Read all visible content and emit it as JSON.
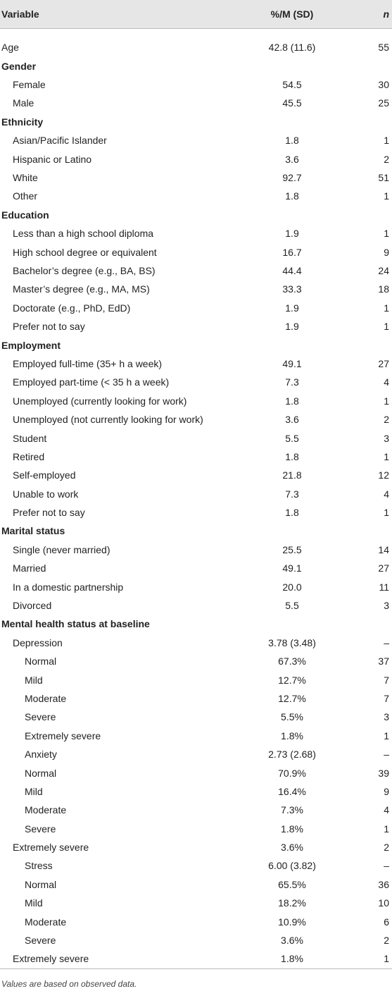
{
  "table": {
    "header": [
      "Variable",
      "%/M (SD)",
      "n"
    ],
    "rows": [
      [
        "Age",
        "42.8 (11.6)",
        "55"
      ],
      [
        "Gender"
      ],
      [
        "Female",
        "54.5",
        "30"
      ],
      [
        "Male",
        "45.5",
        "25"
      ],
      [
        "Ethnicity"
      ],
      [
        "Asian/Pacific Islander",
        "1.8",
        "1"
      ],
      [
        "Hispanic or Latino",
        "3.6",
        "2"
      ],
      [
        "White",
        "92.7",
        "51"
      ],
      [
        "Other",
        "1.8",
        "1"
      ],
      [
        "Education"
      ],
      [
        "Less than a high school diploma",
        "1.9",
        "1"
      ],
      [
        "High school degree or equivalent",
        "16.7",
        "9"
      ],
      [
        "Bachelor’s degree (e.g., BA, BS)",
        "44.4",
        "24"
      ],
      [
        "Master’s degree (e.g., MA, MS)",
        "33.3",
        "18"
      ],
      [
        "Doctorate (e.g., PhD, EdD)",
        "1.9",
        "1"
      ],
      [
        "Prefer not to say",
        "1.9",
        "1"
      ],
      [
        "Employment"
      ],
      [
        "Employed full-time (35+ h a week)",
        "49.1",
        "27"
      ],
      [
        "Employed part-time (< 35 h a week)",
        "7.3",
        "4"
      ],
      [
        "Unemployed (currently looking for work)",
        "1.8",
        "1"
      ],
      [
        "Unemployed (not currently looking for work)",
        "3.6",
        "2"
      ],
      [
        "Student",
        "5.5",
        "3"
      ],
      [
        "Retired",
        "1.8",
        "1"
      ],
      [
        "Self-employed",
        "21.8",
        "12"
      ],
      [
        "Unable to work",
        "7.3",
        "4"
      ],
      [
        "Prefer not to say",
        "1.8",
        "1"
      ],
      [
        "Marital status"
      ],
      [
        "Single (never married)",
        "25.5",
        "14"
      ],
      [
        "Married",
        "49.1",
        "27"
      ],
      [
        "In a domestic partnership",
        "20.0",
        "11"
      ],
      [
        "Divorced",
        "5.5",
        "3"
      ],
      [
        "Mental health status at baseline"
      ],
      [
        "Depression",
        "3.78 (3.48)",
        "–"
      ],
      [
        "Normal",
        "67.3%",
        "37"
      ],
      [
        "Mild",
        "12.7%",
        "7"
      ],
      [
        "Moderate",
        "12.7%",
        "7"
      ],
      [
        "Severe",
        "5.5%",
        "3"
      ],
      [
        "Extremely severe",
        "1.8%",
        "1"
      ],
      [
        "Anxiety",
        "2.73 (2.68)",
        "–"
      ],
      [
        "Normal",
        "70.9%",
        "39"
      ],
      [
        "Mild",
        "16.4%",
        "9"
      ],
      [
        "Moderate",
        "7.3%",
        "4"
      ],
      [
        "Severe",
        "1.8%",
        "1"
      ],
      [
        "Extremely severe",
        "3.6%",
        "2"
      ],
      [
        "Stress",
        "6.00 (3.82)",
        "–"
      ],
      [
        "Normal",
        "65.5%",
        "36"
      ],
      [
        "Mild",
        "18.2%",
        "10"
      ],
      [
        "Moderate",
        "10.9%",
        "6"
      ],
      [
        "Severe",
        "3.6%",
        "2"
      ],
      [
        "Extremely severe",
        "1.8%",
        "1"
      ]
    ]
  },
  "footnote": "Values are based on observed data."
}
